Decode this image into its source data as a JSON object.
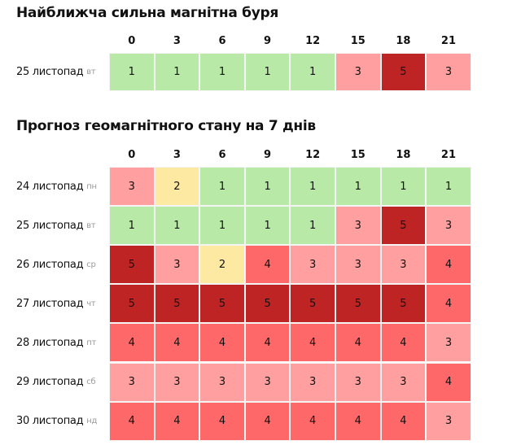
{
  "nearest_storm": {
    "title": "Найближча сильна магнітна буря",
    "hours": [
      "0",
      "3",
      "6",
      "9",
      "12",
      "15",
      "18",
      "21"
    ],
    "rows": [
      {
        "date": "25 листопад",
        "dow": "вт",
        "values": [
          1,
          1,
          1,
          1,
          1,
          3,
          5,
          3
        ]
      }
    ]
  },
  "forecast": {
    "title": "Прогноз геомагнітного стану на 7 днів",
    "hours": [
      "0",
      "3",
      "6",
      "9",
      "12",
      "15",
      "18",
      "21"
    ],
    "rows": [
      {
        "date": "24 листопад",
        "dow": "пн",
        "values": [
          3,
          2,
          1,
          1,
          1,
          1,
          1,
          1
        ]
      },
      {
        "date": "25 листопад",
        "dow": "вт",
        "values": [
          1,
          1,
          1,
          1,
          1,
          3,
          5,
          3
        ]
      },
      {
        "date": "26 листопад",
        "dow": "ср",
        "values": [
          5,
          3,
          2,
          4,
          3,
          3,
          3,
          4
        ]
      },
      {
        "date": "27 листопад",
        "dow": "чт",
        "values": [
          5,
          5,
          5,
          5,
          5,
          5,
          5,
          4
        ]
      },
      {
        "date": "28 листопад",
        "dow": "пт",
        "values": [
          4,
          4,
          4,
          4,
          4,
          4,
          4,
          3
        ]
      },
      {
        "date": "29 листопад",
        "dow": "сб",
        "values": [
          3,
          3,
          3,
          3,
          3,
          3,
          3,
          4
        ]
      },
      {
        "date": "30 листопад",
        "dow": "нд",
        "values": [
          4,
          4,
          4,
          4,
          4,
          4,
          4,
          3
        ]
      }
    ]
  },
  "level_colors": {
    "1": "#b9e9a6",
    "2": "#fde9a1",
    "3": "#ff9f9f",
    "4": "#ff6868",
    "5": "#bf2424"
  }
}
